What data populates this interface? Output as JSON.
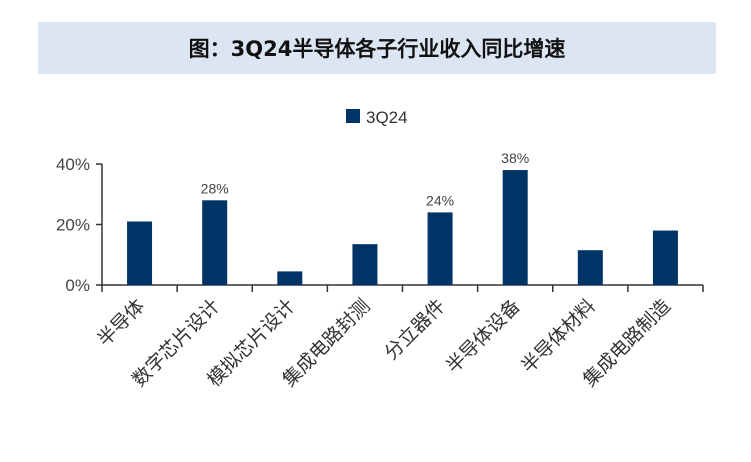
{
  "header": {
    "title": "图：3Q24半导体各子行业收入同比增速"
  },
  "chart_data": {
    "type": "bar",
    "categories": [
      "半导体",
      "数字芯片设计",
      "模拟芯片设计",
      "集成电路封测",
      "分立器件",
      "半导体设备",
      "半导体材料",
      "集成电路制造"
    ],
    "series": [
      {
        "name": "3Q24",
        "values": [
          21,
          28,
          4.5,
          13.5,
          24,
          38,
          11.5,
          18
        ]
      }
    ],
    "data_labels": [
      "",
      "28%",
      "",
      "",
      "24%",
      "38%",
      "",
      ""
    ],
    "yticks": [
      0,
      20,
      40
    ],
    "ytick_labels": [
      "0%",
      "20%",
      "40%"
    ],
    "ylim": [
      0,
      40
    ],
    "legend": "top-center",
    "grid": false,
    "bar_color": "#003366"
  }
}
